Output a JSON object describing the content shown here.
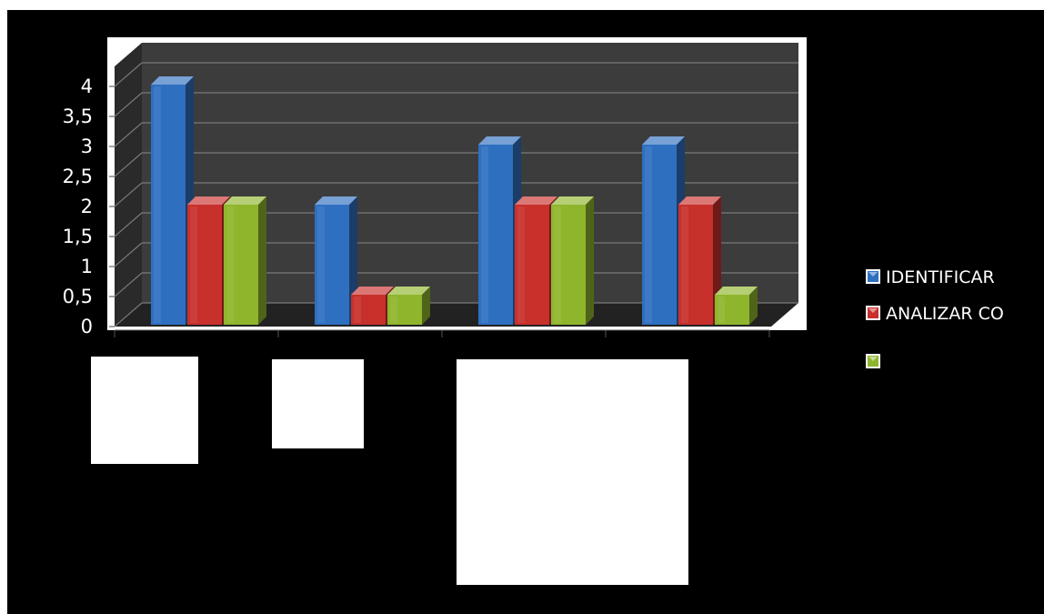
{
  "chart_data": {
    "type": "bar",
    "title": "",
    "xlabel": "",
    "ylabel": "",
    "ylim": [
      0,
      4
    ],
    "y_ticks": [
      "0",
      "0,5",
      "1",
      "1,5",
      "2",
      "2,5",
      "3",
      "3,5",
      "4"
    ],
    "grid": true,
    "legend_position": "right",
    "categories": [
      "",
      "",
      "",
      ""
    ],
    "series": [
      {
        "name": "IDENTIFICAR",
        "color": "#2f6fc0",
        "values": [
          4,
          2,
          3,
          3
        ]
      },
      {
        "name": "ANALIZAR CO",
        "color": "#c8302c",
        "values": [
          2,
          0.5,
          2,
          2
        ]
      },
      {
        "name": "",
        "color": "#8fb52c",
        "values": [
          2,
          0.5,
          2,
          0.5
        ]
      }
    ]
  }
}
